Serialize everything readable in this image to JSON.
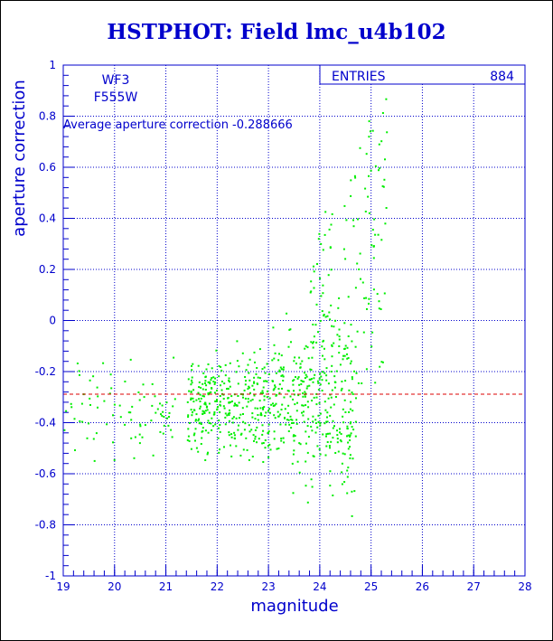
{
  "chart_data": {
    "type": "scatter",
    "title": "HSTPHOT: Field lmc_u4b102",
    "xlabel": "magnitude",
    "ylabel": "aperture correction",
    "xlim": [
      19,
      28
    ],
    "ylim": [
      -1,
      1
    ],
    "x_ticks": [
      "19",
      "20",
      "21",
      "22",
      "23",
      "24",
      "25",
      "26",
      "27",
      "28"
    ],
    "y_ticks": [
      "-1",
      "-0.8",
      "-0.6",
      "-0.4",
      "-0.2",
      "0",
      "0.2",
      "0.4",
      "0.6",
      "0.8",
      "1"
    ],
    "grid": true,
    "stats_box": {
      "label": "ENTRIES",
      "value": "884"
    },
    "annotations": {
      "camera": "WF3",
      "filter": "F555W",
      "average_text": "Average aperture correction  -0.288666"
    },
    "reference_line": {
      "y": -0.288666
    },
    "series_summary": {
      "points": 884,
      "color": "#00dd00",
      "note": "dense cloud between magnitude 21.5 and 24.5 centred near -0.3, fanning upward toward 0.9 at magnitude 24.5-25.3"
    },
    "colors": {
      "axis": "#0000cc",
      "points": "#00ee00",
      "reference_line": "#dd0000",
      "title": "#0000cc"
    }
  }
}
